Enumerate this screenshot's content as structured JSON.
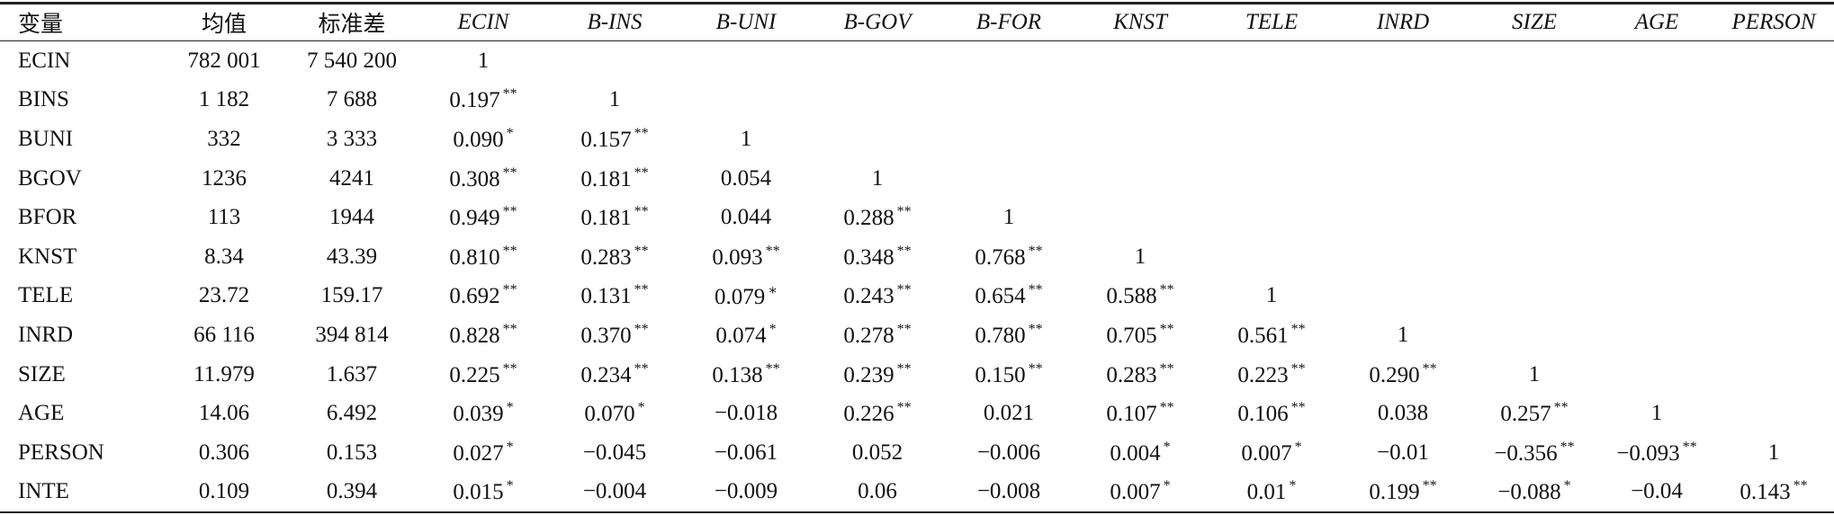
{
  "table": {
    "header": [
      "变量",
      "均值",
      "标准差",
      "ECIN",
      "B-INS",
      "B-UNI",
      "B-GOV",
      "B-FOR",
      "KNST",
      "TELE",
      "INRD",
      "SIZE",
      "AGE",
      "PERSON"
    ],
    "rows": [
      {
        "label": "ECIN",
        "cells": [
          "782 001",
          "7 540 200",
          "1"
        ]
      },
      {
        "label": "BINS",
        "cells": [
          "1 182",
          "7 688",
          {
            "text": "0.197",
            "sig": "**"
          },
          "1"
        ]
      },
      {
        "label": "BUNI",
        "cells": [
          "332",
          "3 333",
          {
            "text": "0.090",
            "sig": "*"
          },
          {
            "text": "0.157",
            "sig": "**"
          },
          "1"
        ]
      },
      {
        "label": "BGOV",
        "cells": [
          "1236",
          "4241",
          {
            "text": "0.308",
            "sig": "**"
          },
          {
            "text": "0.181",
            "sig": "**"
          },
          "0.054",
          "1"
        ]
      },
      {
        "label": "BFOR",
        "cells": [
          "113",
          "1944",
          {
            "text": "0.949",
            "sig": "**"
          },
          {
            "text": "0.181",
            "sig": "**"
          },
          "0.044",
          {
            "text": "0.288",
            "sig": "**"
          },
          "1"
        ]
      },
      {
        "label": "KNST",
        "cells": [
          "8.34",
          "43.39",
          {
            "text": "0.810",
            "sig": "**"
          },
          {
            "text": "0.283",
            "sig": "**"
          },
          {
            "text": "0.093",
            "sig": "**"
          },
          {
            "text": "0.348",
            "sig": "**"
          },
          {
            "text": "0.768",
            "sig": "**"
          },
          "1"
        ]
      },
      {
        "label": "TELE",
        "cells": [
          "23.72",
          "159.17",
          {
            "text": "0.692",
            "sig": "**"
          },
          {
            "text": "0.131",
            "sig": "**"
          },
          {
            "text": "0.079",
            "sig": "∗"
          },
          {
            "text": "0.243",
            "sig": "**"
          },
          {
            "text": "0.654",
            "sig": "**"
          },
          {
            "text": "0.588",
            "sig": "**"
          },
          "1"
        ]
      },
      {
        "label": "INRD",
        "cells": [
          "66 116",
          "394 814",
          {
            "text": "0.828",
            "sig": "**"
          },
          {
            "text": "0.370",
            "sig": "**"
          },
          {
            "text": "0.074",
            "sig": "*"
          },
          {
            "text": "0.278",
            "sig": "**"
          },
          {
            "text": "0.780",
            "sig": "**"
          },
          {
            "text": "0.705",
            "sig": "**"
          },
          {
            "text": "0.561",
            "sig": "**"
          },
          "1"
        ]
      },
      {
        "label": "SIZE",
        "cells": [
          "11.979",
          "1.637",
          {
            "text": "0.225",
            "sig": "**"
          },
          {
            "text": "0.234",
            "sig": "**"
          },
          {
            "text": "0.138",
            "sig": "**"
          },
          {
            "text": "0.239",
            "sig": "**"
          },
          {
            "text": "0.150",
            "sig": "**"
          },
          {
            "text": "0.283",
            "sig": "**"
          },
          {
            "text": "0.223",
            "sig": "**"
          },
          {
            "text": "0.290",
            "sig": "**"
          },
          "1"
        ]
      },
      {
        "label": "AGE",
        "cells": [
          "14.06",
          "6.492",
          {
            "text": "0.039",
            "sig": "*"
          },
          {
            "text": "0.070",
            "sig": "*"
          },
          "−0.018",
          {
            "text": "0.226",
            "sig": "**"
          },
          "0.021",
          {
            "text": "0.107",
            "sig": "**"
          },
          {
            "text": "0.106",
            "sig": "**"
          },
          "0.038",
          {
            "text": "0.257",
            "sig": "**"
          },
          "1"
        ]
      },
      {
        "label": "PERSON",
        "cells": [
          "0.306",
          "0.153",
          {
            "text": "0.027",
            "sig": "*"
          },
          "−0.045",
          "−0.061",
          "0.052",
          "−0.006",
          {
            "text": "0.004",
            "sig": "*"
          },
          {
            "text": "0.007",
            "sig": "*"
          },
          "−0.01",
          {
            "text": "−0.356",
            "sig": "**"
          },
          {
            "text": "−0.093",
            "sig": "**"
          },
          "1"
        ]
      },
      {
        "label": "INTE",
        "cells": [
          "0.109",
          "0.394",
          {
            "text": "0.015",
            "sig": "*"
          },
          "−0.004",
          "−0.009",
          "0.06",
          "−0.008",
          {
            "text": "0.007",
            "sig": "*"
          },
          {
            "text": "0.01",
            "sig": "*"
          },
          {
            "text": "0.199",
            "sig": "**"
          },
          {
            "text": "−0.088",
            "sig": "*"
          },
          "−0.04",
          {
            "text": "0.143",
            "sig": "**"
          }
        ]
      }
    ]
  }
}
